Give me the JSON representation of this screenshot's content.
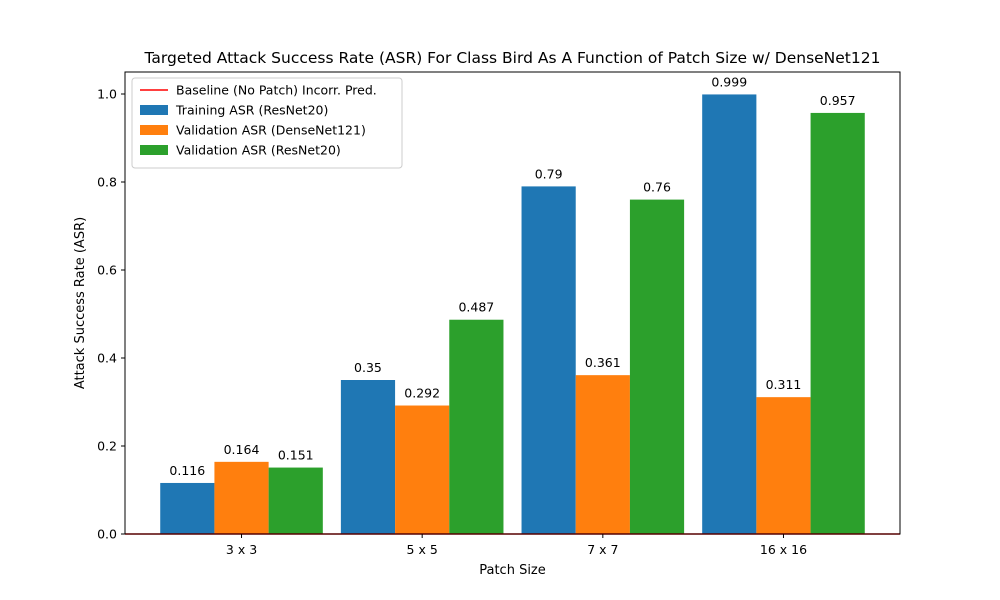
{
  "chart_data": {
    "type": "bar",
    "title": "Targeted Attack Success Rate (ASR) For Class Bird As A Function of Patch Size w/ DenseNet121",
    "xlabel": "Patch Size",
    "ylabel": "Attack Success Rate (ASR)",
    "categories": [
      "3 x 3",
      "5 x 5",
      "7 x 7",
      "16 x 16"
    ],
    "ylim": [
      0,
      1.05
    ],
    "yticks": [
      "0.0",
      "0.2",
      "0.4",
      "0.6",
      "0.8",
      "1.0"
    ],
    "series": [
      {
        "name": "Training ASR (ResNet20)",
        "color": "#1f77b4",
        "values": [
          0.116,
          0.35,
          0.79,
          0.999
        ],
        "labels": [
          "0.116",
          "0.35",
          "0.79",
          "0.999"
        ]
      },
      {
        "name": "Validation ASR (DenseNet121)",
        "color": "#ff7f0e",
        "values": [
          0.164,
          0.292,
          0.361,
          0.311
        ],
        "labels": [
          "0.164",
          "0.292",
          "0.361",
          "0.311"
        ]
      },
      {
        "name": "Validation ASR (ResNet20)",
        "color": "#2ca02c",
        "values": [
          0.151,
          0.487,
          0.76,
          0.957
        ],
        "labels": [
          "0.151",
          "0.487",
          "0.76",
          "0.957"
        ]
      }
    ],
    "baseline": {
      "name": "Baseline (No Patch) Incorr. Pred.",
      "color": "#ff0000",
      "value": 0.0
    },
    "legend_position": "top-left",
    "grid": false
  }
}
